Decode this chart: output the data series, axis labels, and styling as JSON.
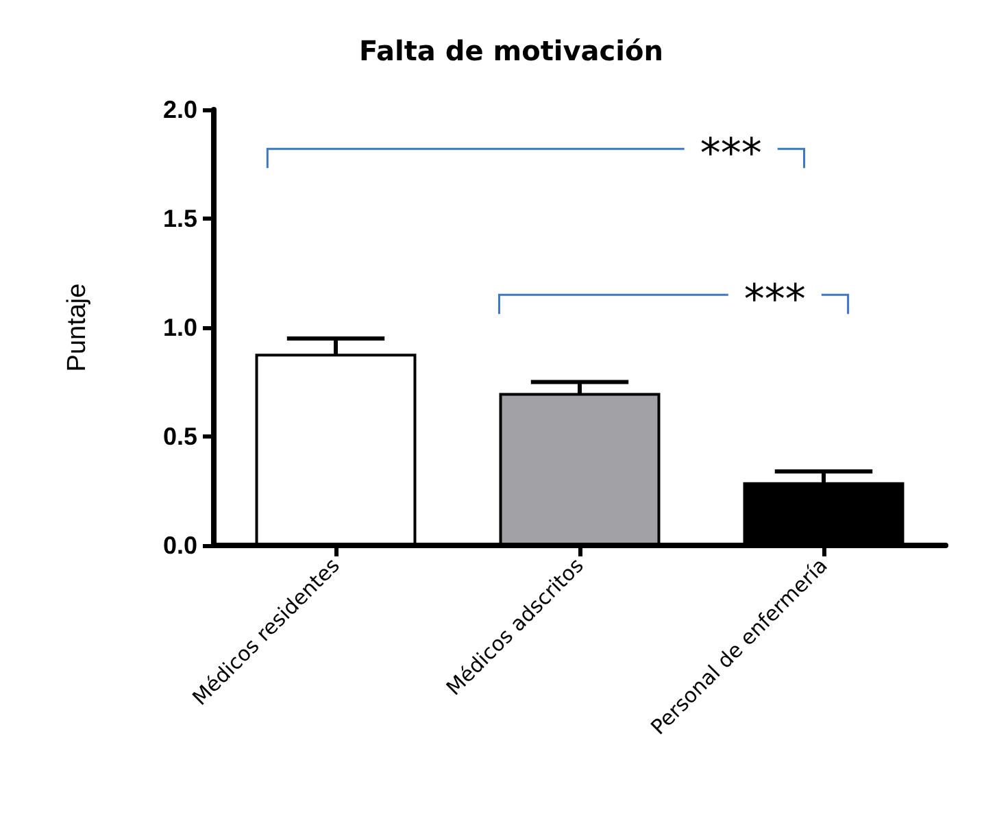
{
  "chart_data": {
    "type": "bar",
    "title": "Falta de motivación",
    "ylabel": "Puntaje",
    "categories": [
      "Médicos residentes",
      "Médicos adscritos",
      "Personal de enfermería"
    ],
    "values": [
      0.88,
      0.7,
      0.29
    ],
    "colors": [
      "#ffffff",
      "#a2a1a6",
      "#000000"
    ],
    "errors": [
      0.07,
      0.05,
      0.05
    ],
    "ylim": [
      0,
      2
    ],
    "yticks": [
      {
        "value": 0,
        "label": "0.0"
      },
      0.5,
      {
        "value": 1,
        "label": "1.0"
      },
      1.5,
      {
        "value": 2,
        "label": "2.0"
      }
    ],
    "grid": false,
    "annotations": [
      "***",
      "***"
    ]
  }
}
